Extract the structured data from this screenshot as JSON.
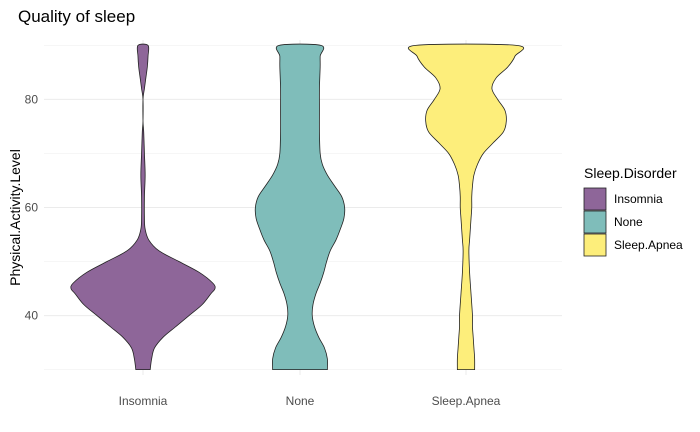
{
  "chart_data": {
    "type": "violin",
    "title": "Quality of sleep",
    "xlabel": "",
    "ylabel": "Physical.Activity.Level",
    "ylim": [
      29,
      91
    ],
    "yticks": [
      40,
      60,
      80
    ],
    "categories": [
      "Insomnia",
      "None",
      "Sleep.Apnea"
    ],
    "legend": {
      "title": "Sleep.Disorder",
      "position": "right",
      "entries": [
        "Insomnia",
        "None",
        "Sleep.Apnea"
      ]
    },
    "colors": {
      "Insomnia": "#8e6699",
      "None": "#7fbdba",
      "Sleep.Apnea": "#fdee7b"
    },
    "grid": true,
    "series": [
      {
        "name": "Insomnia",
        "range": [
          30,
          90
        ],
        "density_profile": [
          [
            30,
            0.1
          ],
          [
            32,
            0.12
          ],
          [
            34,
            0.16
          ],
          [
            36,
            0.28
          ],
          [
            38,
            0.46
          ],
          [
            40,
            0.64
          ],
          [
            42,
            0.82
          ],
          [
            44,
            0.94
          ],
          [
            45,
            1.0
          ],
          [
            46,
            0.97
          ],
          [
            48,
            0.78
          ],
          [
            50,
            0.5
          ],
          [
            52,
            0.22
          ],
          [
            54,
            0.08
          ],
          [
            56,
            0.03
          ],
          [
            58,
            0.02
          ],
          [
            62,
            0.02
          ],
          [
            66,
            0.03
          ],
          [
            70,
            0.02
          ],
          [
            74,
            0.01
          ],
          [
            76,
            0.0
          ],
          [
            80,
            0.0
          ],
          [
            82,
            0.02
          ],
          [
            84,
            0.04
          ],
          [
            86,
            0.06
          ],
          [
            88,
            0.07
          ],
          [
            90,
            0.07
          ]
        ]
      },
      {
        "name": "None",
        "range": [
          30,
          90
        ],
        "density_profile": [
          [
            30,
            0.38
          ],
          [
            32,
            0.38
          ],
          [
            34,
            0.34
          ],
          [
            36,
            0.26
          ],
          [
            38,
            0.2
          ],
          [
            40,
            0.17
          ],
          [
            42,
            0.18
          ],
          [
            44,
            0.22
          ],
          [
            46,
            0.28
          ],
          [
            48,
            0.33
          ],
          [
            50,
            0.37
          ],
          [
            52,
            0.42
          ],
          [
            54,
            0.5
          ],
          [
            56,
            0.56
          ],
          [
            58,
            0.61
          ],
          [
            60,
            0.62
          ],
          [
            62,
            0.58
          ],
          [
            64,
            0.48
          ],
          [
            66,
            0.38
          ],
          [
            68,
            0.31
          ],
          [
            70,
            0.28
          ],
          [
            74,
            0.27
          ],
          [
            78,
            0.27
          ],
          [
            82,
            0.27
          ],
          [
            86,
            0.28
          ],
          [
            88,
            0.28
          ],
          [
            90,
            0.29
          ]
        ]
      },
      {
        "name": "Sleep.Apnea",
        "range": [
          30,
          90
        ],
        "density_profile": [
          [
            30,
            0.12
          ],
          [
            32,
            0.12
          ],
          [
            34,
            0.11
          ],
          [
            36,
            0.1
          ],
          [
            38,
            0.09
          ],
          [
            40,
            0.09
          ],
          [
            44,
            0.07
          ],
          [
            48,
            0.05
          ],
          [
            52,
            0.04
          ],
          [
            54,
            0.05
          ],
          [
            56,
            0.06
          ],
          [
            58,
            0.07
          ],
          [
            60,
            0.08
          ],
          [
            62,
            0.08
          ],
          [
            64,
            0.09
          ],
          [
            66,
            0.11
          ],
          [
            68,
            0.16
          ],
          [
            70,
            0.24
          ],
          [
            72,
            0.38
          ],
          [
            74,
            0.52
          ],
          [
            76,
            0.56
          ],
          [
            78,
            0.54
          ],
          [
            80,
            0.44
          ],
          [
            82,
            0.36
          ],
          [
            84,
            0.42
          ],
          [
            86,
            0.58
          ],
          [
            88,
            0.68
          ],
          [
            90,
            0.7
          ]
        ]
      }
    ]
  }
}
